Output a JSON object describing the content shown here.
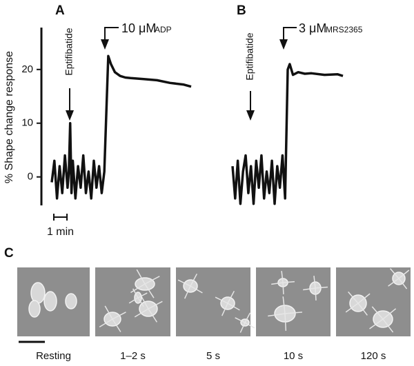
{
  "chart_data": [
    {
      "type": "line",
      "panel": "A",
      "ylabel": "% Shape change response",
      "ylim": [
        -5.3,
        27.8
      ],
      "yticks": [
        0,
        10,
        20
      ],
      "xlim": [
        0,
        10.6
      ],
      "scale_bar": {
        "length": 1,
        "label": "1 min"
      },
      "annotations": [
        {
          "text": "Eptifibatide"
        },
        {
          "dose": "10 μM",
          "agent": "ADP"
        }
      ],
      "series": [
        {
          "color": "#111111",
          "x": [
            0,
            0.2,
            0.4,
            0.6,
            0.8,
            1.0,
            1.2,
            1.3,
            1.4,
            1.5,
            1.6,
            1.8,
            2.0,
            2.2,
            2.4,
            2.6,
            2.8,
            3.0,
            3.2,
            3.4,
            3.6,
            3.8,
            4.0,
            4.15,
            4.3,
            4.5,
            4.8,
            5.2,
            5.6,
            6,
            7,
            8,
            9,
            10,
            10.6
          ],
          "values": [
            -1,
            3,
            -4,
            2,
            -3,
            4,
            -2,
            1,
            10,
            -3,
            3,
            -4,
            2,
            -2,
            4,
            -3,
            1,
            -4,
            3,
            -2,
            2,
            -3,
            1,
            12,
            22.5,
            21,
            19.5,
            18.8,
            18.5,
            18.4,
            18.2,
            18,
            17.5,
            17.2,
            16.8
          ]
        }
      ]
    },
    {
      "type": "line",
      "panel": "B",
      "ylim": [
        -5.3,
        27.8
      ],
      "xlim": [
        0,
        8.4
      ],
      "annotations": [
        {
          "text": "Eptifibatide"
        },
        {
          "dose": "3 μM",
          "agent": "MRS2365"
        }
      ],
      "series": [
        {
          "color": "#111111",
          "x": [
            0,
            0.2,
            0.4,
            0.6,
            0.8,
            1.0,
            1.2,
            1.4,
            1.6,
            1.8,
            2.0,
            2.2,
            2.4,
            2.6,
            2.8,
            3.0,
            3.2,
            3.4,
            3.6,
            3.8,
            4.0,
            4.2,
            4.35,
            4.6,
            5,
            5.5,
            6,
            7,
            8,
            8.4
          ],
          "values": [
            2,
            -4,
            3,
            -5,
            1,
            4,
            -3,
            2,
            -5,
            3,
            -2,
            4,
            -4,
            1,
            -3,
            3,
            -5,
            2,
            -2,
            4,
            -4,
            20,
            21,
            19,
            19.5,
            19.2,
            19.3,
            19,
            19.1,
            18.8
          ]
        }
      ]
    }
  ],
  "panel_c": {
    "label": "C",
    "images": [
      {
        "caption": "Resting"
      },
      {
        "caption": "1–2 s"
      },
      {
        "caption": "5 s"
      },
      {
        "caption": "10 s"
      },
      {
        "caption": "120 s"
      }
    ]
  }
}
